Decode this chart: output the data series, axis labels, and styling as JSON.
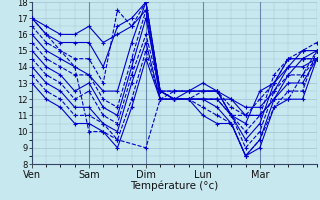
{
  "background_color": "#c8e8f0",
  "grid_color": "#a0c0d0",
  "line_color": "#0000cc",
  "markersize": 3,
  "linewidth": 0.8,
  "xlabel": "Température (°c)",
  "ylim": [
    8,
    18
  ],
  "yticks": [
    8,
    9,
    10,
    11,
    12,
    13,
    14,
    15,
    16,
    17,
    18
  ],
  "day_labels": [
    "Ven",
    "Sam",
    "Dim",
    "Lun",
    "Mar"
  ],
  "day_positions": [
    0,
    24,
    48,
    72,
    96
  ],
  "total_hours": 120,
  "series": [
    {
      "x": [
        0,
        6,
        12,
        18,
        24,
        30,
        36,
        42,
        48,
        54,
        60,
        66,
        72,
        78,
        84,
        90,
        96,
        102,
        108,
        114,
        120
      ],
      "y": [
        17.0,
        16.5,
        16.0,
        16.0,
        16.5,
        15.5,
        16.0,
        16.5,
        17.5,
        12.0,
        12.0,
        12.0,
        12.0,
        12.0,
        12.0,
        11.0,
        11.0,
        12.0,
        13.5,
        14.5,
        14.5
      ],
      "linestyle": "-"
    },
    {
      "x": [
        0,
        6,
        12,
        18,
        24,
        30,
        36,
        42,
        48,
        54,
        60,
        66,
        72,
        78,
        84,
        90,
        96,
        102,
        108,
        114,
        120
      ],
      "y": [
        17.0,
        16.0,
        15.5,
        15.5,
        15.5,
        14.0,
        16.5,
        17.0,
        18.0,
        12.5,
        12.5,
        12.5,
        12.5,
        12.5,
        12.0,
        11.5,
        11.5,
        12.5,
        14.0,
        15.0,
        15.0
      ],
      "linestyle": "-"
    },
    {
      "x": [
        0,
        6,
        12,
        18,
        24,
        30,
        36,
        42,
        48,
        54,
        60,
        66,
        72,
        78,
        84,
        90,
        96,
        102,
        108,
        114,
        120
      ],
      "y": [
        16.5,
        15.5,
        15.0,
        14.5,
        14.5,
        13.0,
        17.5,
        16.5,
        18.0,
        12.5,
        12.5,
        12.5,
        12.5,
        12.5,
        11.5,
        11.0,
        12.0,
        13.0,
        14.5,
        15.0,
        15.5
      ],
      "linestyle": "--"
    },
    {
      "x": [
        0,
        6,
        12,
        18,
        24,
        30,
        36,
        42,
        48,
        54,
        60,
        66,
        72,
        78,
        84,
        90,
        96,
        102,
        108,
        114,
        120
      ],
      "y": [
        16.0,
        15.0,
        14.5,
        14.0,
        13.5,
        12.5,
        12.5,
        15.5,
        18.0,
        12.5,
        12.0,
        12.5,
        13.0,
        12.5,
        11.0,
        10.5,
        12.5,
        13.0,
        14.5,
        14.5,
        15.0
      ],
      "linestyle": "-"
    },
    {
      "x": [
        0,
        6,
        12,
        18,
        24,
        30,
        36,
        42,
        48,
        54,
        60,
        66,
        72,
        78,
        84,
        90,
        96,
        102,
        108,
        114,
        120
      ],
      "y": [
        15.5,
        14.5,
        14.0,
        13.5,
        13.5,
        12.0,
        11.5,
        14.5,
        17.5,
        12.5,
        12.0,
        12.0,
        12.5,
        12.5,
        11.0,
        10.0,
        11.0,
        13.5,
        14.5,
        14.5,
        14.5
      ],
      "linestyle": "--"
    },
    {
      "x": [
        0,
        6,
        12,
        18,
        24,
        30,
        36,
        42,
        48,
        54,
        60,
        66,
        72,
        78,
        84,
        90,
        96,
        102,
        108,
        114,
        120
      ],
      "y": [
        15.0,
        14.0,
        13.5,
        12.5,
        13.0,
        11.5,
        11.0,
        14.0,
        17.0,
        12.5,
        12.0,
        12.0,
        12.0,
        12.0,
        11.0,
        9.5,
        10.5,
        13.0,
        14.0,
        14.0,
        14.5
      ],
      "linestyle": "-"
    },
    {
      "x": [
        0,
        6,
        12,
        18,
        24,
        30,
        36,
        42,
        48,
        54,
        60,
        66,
        72,
        78,
        84,
        90,
        96,
        102,
        108,
        114,
        120
      ],
      "y": [
        14.5,
        13.5,
        13.0,
        12.0,
        12.5,
        11.0,
        10.5,
        13.5,
        16.0,
        12.5,
        12.0,
        12.0,
        12.0,
        12.0,
        11.0,
        9.0,
        10.0,
        12.5,
        13.5,
        13.5,
        14.5
      ],
      "linestyle": "--"
    },
    {
      "x": [
        0,
        6,
        12,
        18,
        24,
        30,
        36,
        42,
        48,
        54,
        60,
        66,
        72,
        78,
        84,
        90,
        96,
        102,
        108,
        114,
        120
      ],
      "y": [
        14.0,
        13.0,
        12.5,
        11.5,
        11.5,
        10.5,
        10.0,
        13.0,
        15.5,
        12.0,
        12.0,
        12.0,
        12.0,
        11.5,
        10.5,
        8.5,
        9.5,
        12.0,
        13.0,
        13.0,
        14.5
      ],
      "linestyle": "-"
    },
    {
      "x": [
        0,
        6,
        12,
        18,
        24,
        30,
        36,
        42,
        48,
        54,
        60,
        66,
        72,
        78,
        84,
        90,
        96,
        102,
        108,
        114,
        120
      ],
      "y": [
        13.5,
        12.5,
        12.0,
        11.0,
        11.0,
        10.5,
        9.5,
        12.0,
        15.0,
        12.0,
        12.0,
        12.0,
        11.5,
        11.0,
        10.5,
        8.5,
        9.5,
        11.5,
        12.5,
        12.5,
        15.0
      ],
      "linestyle": "--"
    },
    {
      "x": [
        0,
        6,
        12,
        18,
        24,
        30,
        36,
        42,
        48,
        54,
        60,
        66,
        72,
        78,
        84,
        90,
        96,
        102,
        108,
        114,
        120
      ],
      "y": [
        13.0,
        12.0,
        11.5,
        10.5,
        10.5,
        10.0,
        9.0,
        11.5,
        14.5,
        12.0,
        12.0,
        12.0,
        11.0,
        10.5,
        10.5,
        8.5,
        9.0,
        11.5,
        12.0,
        12.0,
        14.5
      ],
      "linestyle": "-"
    },
    {
      "x": [
        0,
        6,
        12,
        18,
        24,
        30,
        36,
        48,
        54,
        60,
        66,
        72,
        78,
        84,
        90,
        96,
        102,
        108,
        114,
        120
      ],
      "y": [
        17.0,
        16.0,
        15.0,
        14.0,
        10.0,
        10.0,
        9.5,
        9.0,
        12.0,
        12.5,
        12.5,
        12.5,
        12.5,
        11.0,
        11.0,
        11.0,
        12.0,
        12.0,
        13.5,
        15.0
      ],
      "linestyle": "--"
    }
  ]
}
